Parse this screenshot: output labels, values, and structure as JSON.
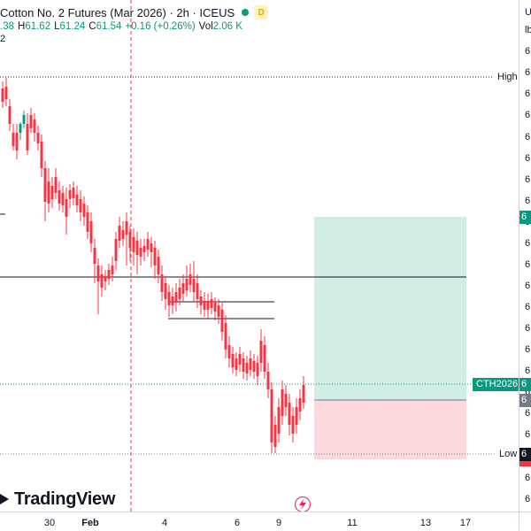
{
  "legend": {
    "title": "Cotton No. 2 Futures (Mar 2026) · 2h · ICEUS",
    "d_badge": "D",
    "o_label": "",
    "o_value": ".38",
    "h_label": "H",
    "h_value": "61.62",
    "l_label": "L",
    "l_value": "61.24",
    "c_label": "C",
    "c_value": "61.54",
    "change": "+0.16 (+0.26%)",
    "vol_label": "Vol",
    "vol_value": "2.06 K",
    "sub_badge": "2"
  },
  "lines": {
    "high_label": "High",
    "low_label": "Low"
  },
  "symbol_tag": "CTH2026",
  "price_scale": {
    "unit_top_1": "U",
    "unit_top_2": "lb",
    "ticks": [
      "6",
      "6",
      "6",
      "6",
      "6",
      "6",
      "6",
      "6",
      "6",
      "6",
      "6",
      "6",
      "6",
      "6",
      "6",
      "6",
      "6",
      "6",
      "6",
      "6",
      "6",
      "6",
      "6"
    ],
    "box_green": "6",
    "box_gray": "6",
    "box_right_sym": "6",
    "box_low": "6"
  },
  "time_axis": {
    "labels": [
      "30",
      "Feb",
      "4",
      "6",
      "9",
      "11",
      "13",
      "17"
    ]
  },
  "branding": {
    "logo_text": "TradingView"
  },
  "colors": {
    "up": "#089981",
    "down": "#f23645",
    "profit_zone": "#d1ede6",
    "loss_zone": "#fbd9dc",
    "session_line": "#f23645"
  }
}
